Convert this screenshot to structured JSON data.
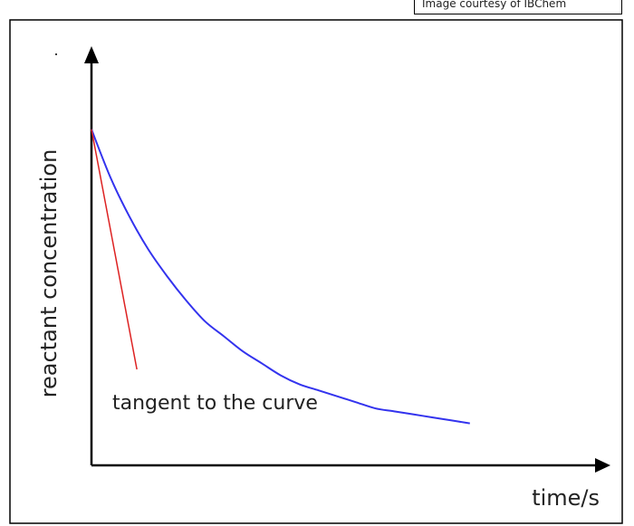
{
  "credit": "Image courtesy of IBChem",
  "chart_data": {
    "type": "line",
    "title": "",
    "xlabel": "time/s",
    "ylabel": "reactant concentration",
    "x_ticks": [],
    "y_ticks": [],
    "grid": false,
    "legend": null,
    "series": [
      {
        "color": "#3333ee",
        "points": [
          [
            0,
            1.0
          ],
          [
            0.5,
            0.84
          ],
          [
            1,
            0.71
          ],
          [
            1.5,
            0.6
          ],
          [
            2,
            0.51
          ],
          [
            2.5,
            0.43
          ],
          [
            3,
            0.36
          ],
          [
            3.5,
            0.31
          ],
          [
            4,
            0.26
          ],
          [
            4.5,
            0.22
          ],
          [
            5,
            0.18
          ],
          [
            5.5,
            0.15
          ],
          [
            6,
            0.13
          ],
          [
            6.5,
            0.11
          ],
          [
            7,
            0.09
          ],
          [
            7.5,
            0.07
          ],
          [
            8,
            0.06
          ],
          [
            8.5,
            0.05
          ],
          [
            9,
            0.04
          ],
          [
            9.5,
            0.03
          ],
          [
            10,
            0.02
          ]
        ]
      }
    ],
    "annotations": [
      {
        "kind": "line",
        "color": "#dd2222",
        "from": [
          0,
          1.0
        ],
        "to": [
          1.2,
          0.2
        ],
        "label": "tangent to the curve"
      }
    ],
    "xlim": [
      0,
      13.5
    ],
    "ylim": [
      -0.12,
      1.25
    ]
  }
}
